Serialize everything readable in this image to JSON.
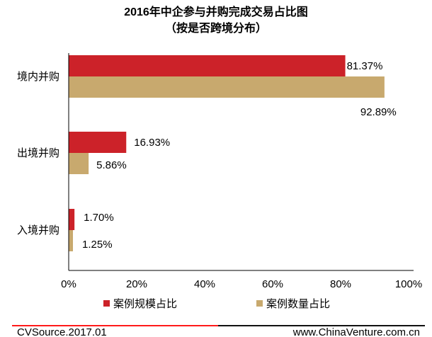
{
  "chart_data": {
    "type": "bar",
    "orientation": "horizontal",
    "title": "2016年中企参与并购完成交易占比图",
    "subtitle": "（按是否跨境分布）",
    "categories": [
      "境内并购",
      "出境并购",
      "入境并购"
    ],
    "series": [
      {
        "name": "案例规模占比",
        "color": "#cc2229",
        "values": [
          81.37,
          16.93,
          1.7
        ],
        "labels": [
          "81.37%",
          "16.93%",
          "1.70%"
        ]
      },
      {
        "name": "案例数量占比",
        "color": "#c8a96e",
        "values": [
          92.89,
          5.86,
          1.25
        ],
        "labels": [
          "92.89%",
          "5.86%",
          "1.25%"
        ]
      }
    ],
    "xlim": [
      0,
      100
    ],
    "xticks": [
      "0%",
      "20%",
      "40%",
      "60%",
      "80%",
      "100%"
    ],
    "grid": false,
    "legend": "bottom"
  },
  "footer": {
    "source": "CVSource.2017.01",
    "site": "www.ChinaVenture.com.cn"
  }
}
